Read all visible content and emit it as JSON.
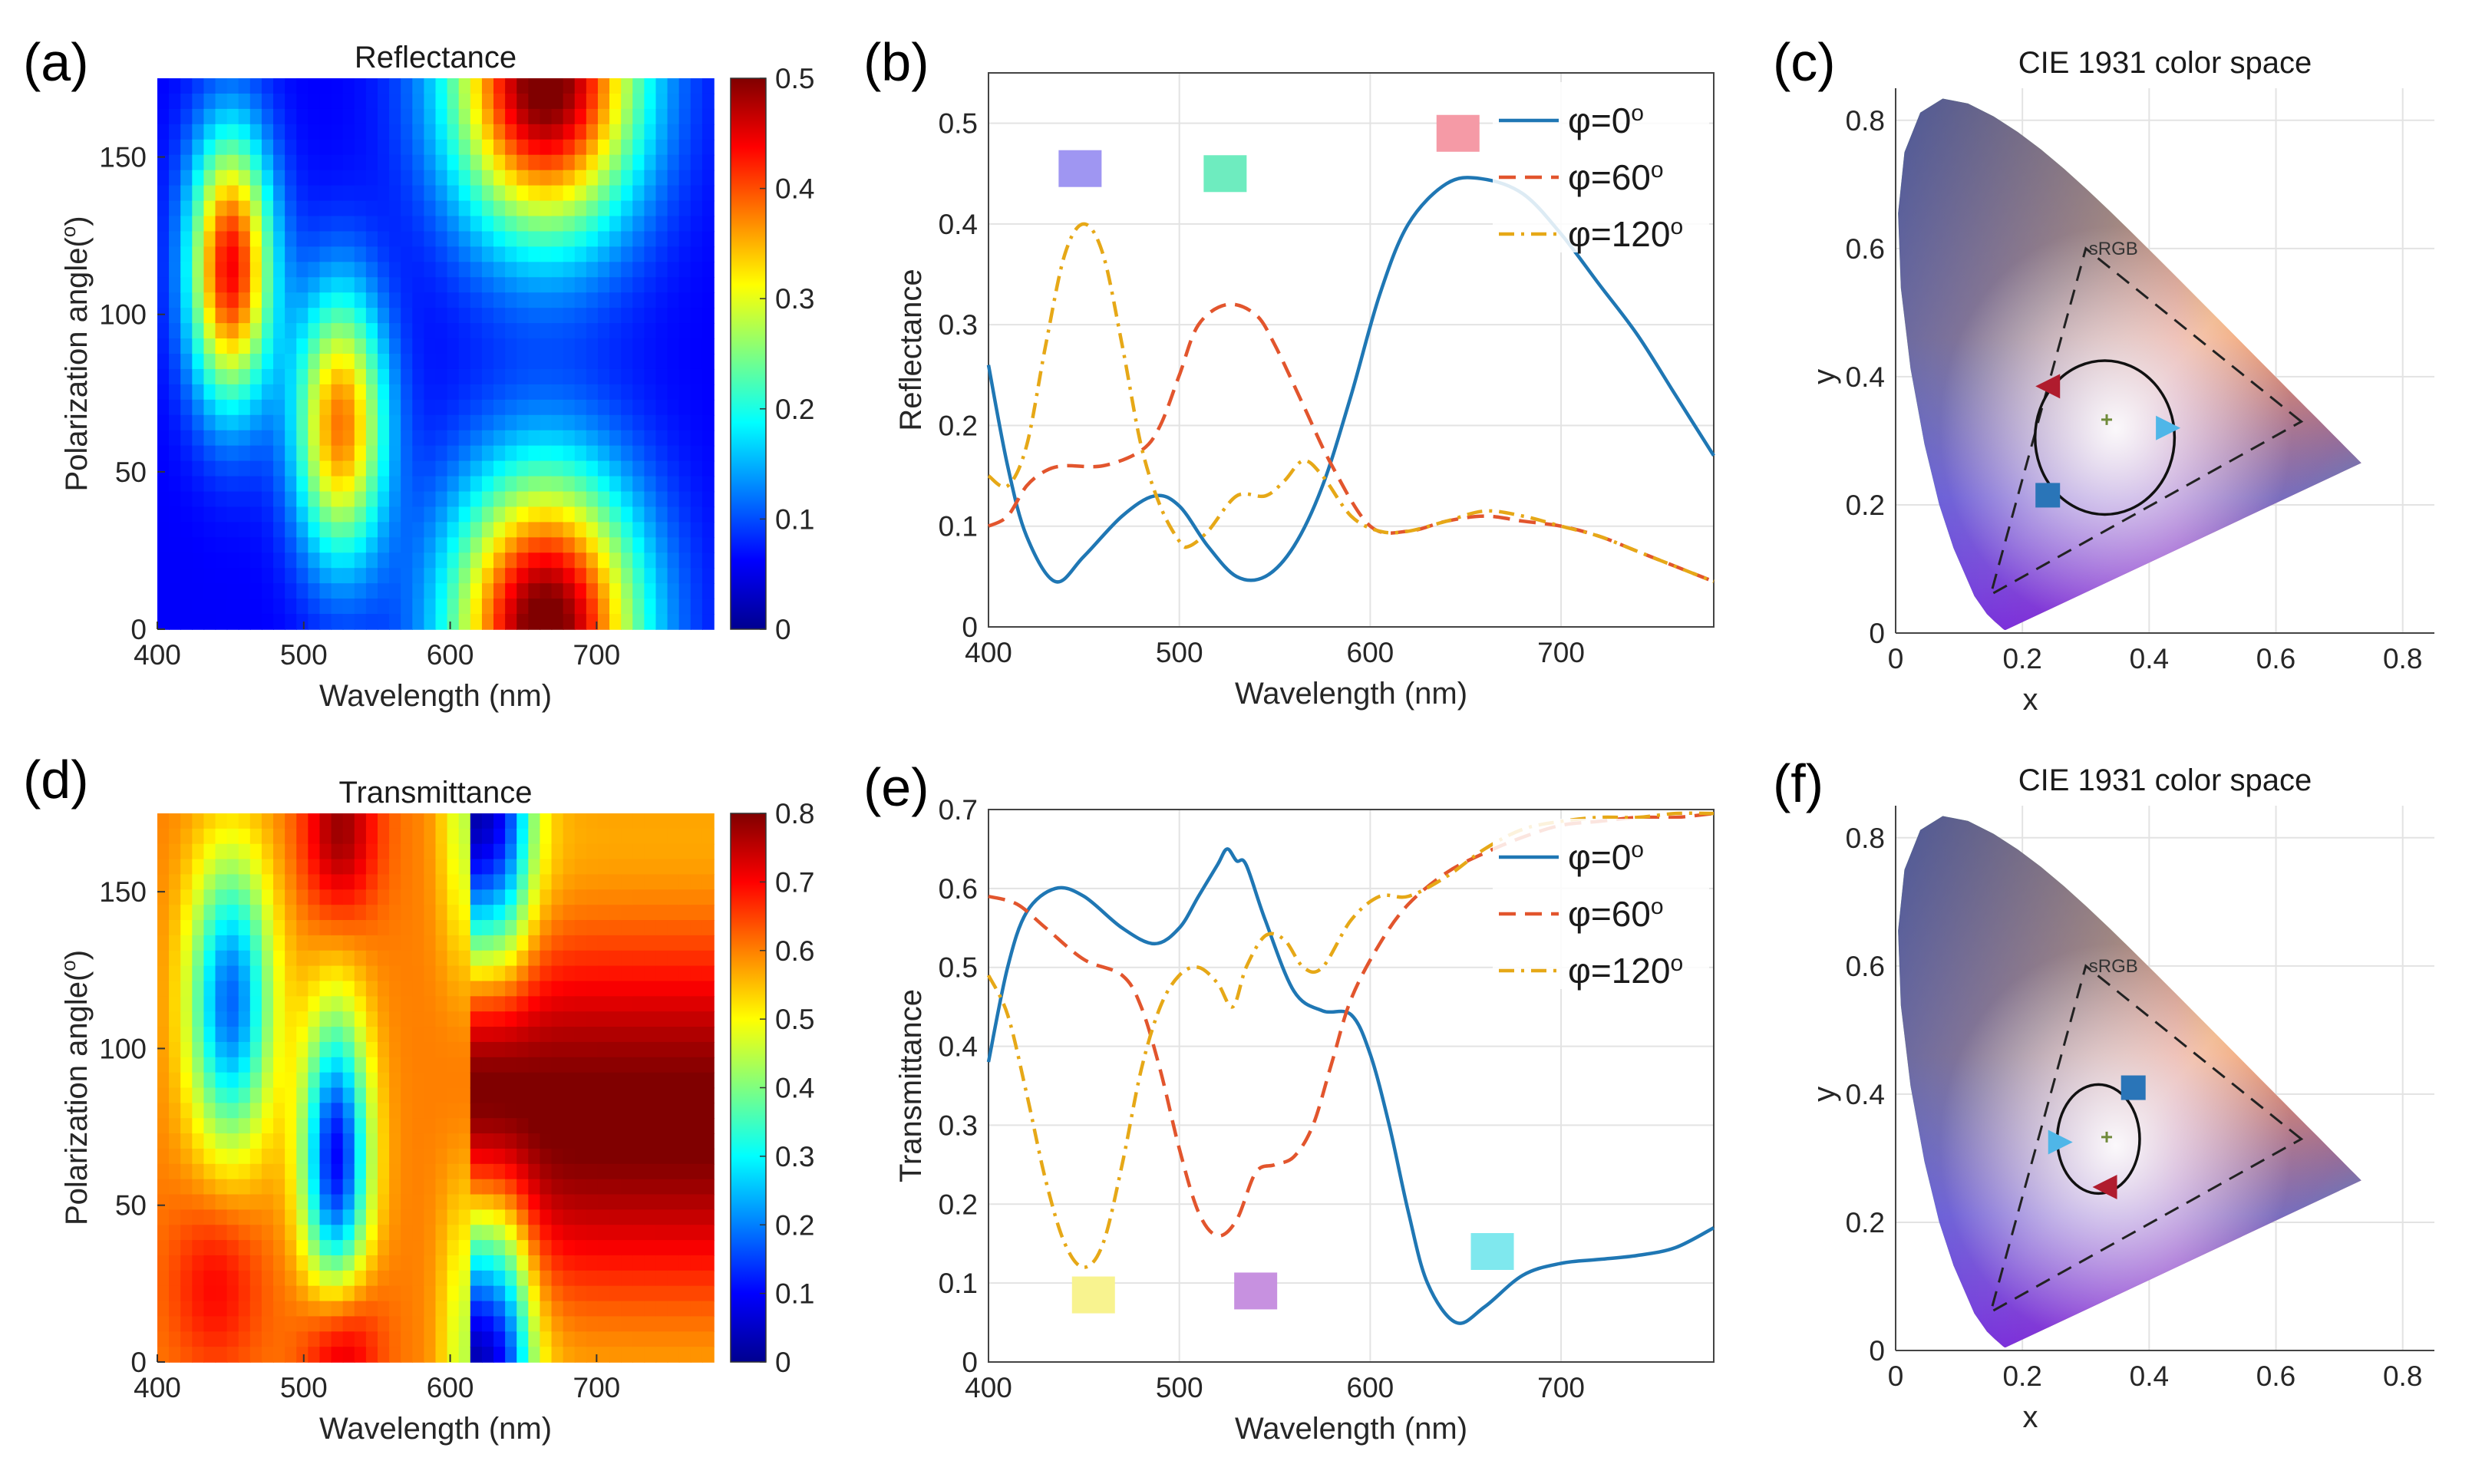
{
  "panels": {
    "a": {
      "label": "(a)",
      "title": "Reflectance"
    },
    "b": {
      "label": "(b)"
    },
    "c": {
      "label": "(c)",
      "title": "CIE 1931 color space"
    },
    "d": {
      "label": "(d)",
      "title": "Transmittance"
    },
    "e": {
      "label": "(e)"
    },
    "f": {
      "label": "(f)",
      "title": "CIE 1931 color space"
    }
  },
  "chart_data": [
    {
      "id": "a",
      "type": "heatmap",
      "title": "Reflectance",
      "xlabel": "Wavelength (nm)",
      "ylabel": "Polarization angle(o)",
      "xlim": [
        400,
        780
      ],
      "ylim": [
        0,
        175
      ],
      "xticks": [
        400,
        500,
        600,
        700
      ],
      "yticks": [
        0,
        50,
        100,
        150
      ],
      "colorbar": {
        "min": 0,
        "max": 0.5,
        "ticks": [
          "0",
          "0.1",
          "0.2",
          "0.3",
          "0.4",
          "0.5"
        ]
      },
      "blobs": [
        {
          "x": 450,
          "y": 115,
          "sx": 20,
          "sy": 30,
          "v": 0.38
        },
        {
          "x": 525,
          "y": 65,
          "sx": 22,
          "sy": 30,
          "v": 0.32
        },
        {
          "x": 665,
          "y": 175,
          "sx": 45,
          "sy": 35,
          "v": 0.46
        },
        {
          "x": 665,
          "y": 0,
          "sx": 45,
          "sy": 35,
          "v": 0.46
        }
      ],
      "base": 0.06
    },
    {
      "id": "b",
      "type": "line",
      "xlabel": "Wavelength (nm)",
      "ylabel": "Reflectance",
      "xlim": [
        400,
        780
      ],
      "ylim": [
        0,
        0.55
      ],
      "xticks": [
        400,
        500,
        600,
        700
      ],
      "yticks": [
        0,
        0.1,
        0.2,
        0.3,
        0.4,
        0.5
      ],
      "ytick_labels": [
        "0",
        "0.1",
        "0.2",
        "0.3",
        "0.4",
        "0.5"
      ],
      "series": [
        {
          "name": "φ=0°",
          "color": "#1f77b4",
          "style": "solid",
          "x": [
            400,
            410,
            420,
            435,
            450,
            470,
            487,
            500,
            515,
            530,
            545,
            560,
            575,
            590,
            605,
            620,
            640,
            658,
            680,
            700,
            720,
            740,
            760,
            780
          ],
          "y": [
            0.26,
            0.16,
            0.09,
            0.045,
            0.07,
            0.11,
            0.13,
            0.12,
            0.08,
            0.05,
            0.05,
            0.08,
            0.14,
            0.23,
            0.33,
            0.4,
            0.44,
            0.445,
            0.43,
            0.39,
            0.34,
            0.29,
            0.23,
            0.17
          ]
        },
        {
          "name": "φ=60°",
          "color": "#e2552d",
          "style": "dashed",
          "x": [
            400,
            410,
            420,
            430,
            440,
            460,
            480,
            490,
            500,
            510,
            525,
            540,
            550,
            565,
            580,
            600,
            620,
            640,
            660,
            680,
            700,
            720,
            740,
            760,
            780
          ],
          "y": [
            0.1,
            0.11,
            0.14,
            0.155,
            0.16,
            0.16,
            0.175,
            0.2,
            0.25,
            0.3,
            0.32,
            0.31,
            0.28,
            0.22,
            0.16,
            0.1,
            0.095,
            0.105,
            0.11,
            0.105,
            0.1,
            0.09,
            0.075,
            0.06,
            0.045
          ]
        },
        {
          "name": "φ=120°",
          "color": "#e6a817",
          "style": "dashdot",
          "x": [
            400,
            410,
            420,
            430,
            440,
            450,
            460,
            470,
            480,
            490,
            500,
            505,
            515,
            530,
            545,
            555,
            565,
            575,
            590,
            605,
            620,
            640,
            660,
            680,
            700,
            720,
            740,
            760,
            780
          ],
          "y": [
            0.15,
            0.14,
            0.18,
            0.28,
            0.37,
            0.4,
            0.37,
            0.28,
            0.18,
            0.12,
            0.085,
            0.08,
            0.095,
            0.13,
            0.13,
            0.145,
            0.165,
            0.15,
            0.11,
            0.095,
            0.095,
            0.105,
            0.115,
            0.11,
            0.1,
            0.09,
            0.075,
            0.06,
            0.045
          ]
        }
      ],
      "swatches": [
        {
          "x": 448,
          "y": 0.455,
          "color": "#9f96f2"
        },
        {
          "x": 524,
          "y": 0.45,
          "color": "#6eecbf"
        },
        {
          "x": 646,
          "y": 0.49,
          "color": "#f59aa6"
        }
      ],
      "legend": "top-right"
    },
    {
      "id": "c",
      "type": "scatter",
      "title": "CIE 1931 color space",
      "xlabel": "x",
      "ylabel": "y",
      "xlim": [
        0,
        0.85
      ],
      "ylim": [
        0,
        0.85
      ],
      "xticks": [
        0,
        0.2,
        0.4,
        0.6,
        0.8
      ],
      "yticks": [
        0,
        0.2,
        0.4,
        0.6,
        0.8
      ],
      "tick_labels": [
        "0",
        "0.2",
        "0.4",
        "0.6",
        "0.8"
      ],
      "gamut_label": "sRGB",
      "srgb": [
        [
          0.64,
          0.33
        ],
        [
          0.3,
          0.6
        ],
        [
          0.15,
          0.06
        ]
      ],
      "white_point": [
        0.333,
        0.333
      ],
      "ellipse": {
        "cx": 0.33,
        "cy": 0.305,
        "rx": 0.11,
        "ry": 0.12
      },
      "markers": [
        {
          "shape": "triangle-left",
          "x": 0.24,
          "y": 0.385,
          "color": "#b01c2e"
        },
        {
          "shape": "triangle-right",
          "x": 0.43,
          "y": 0.32,
          "color": "#4fb6e8"
        },
        {
          "shape": "square",
          "x": 0.24,
          "y": 0.215,
          "color": "#2a75b8"
        }
      ]
    },
    {
      "id": "d",
      "type": "heatmap",
      "title": "Transmittance",
      "xlabel": "Wavelength (nm)",
      "ylabel": "Polarization angle(o)",
      "xlim": [
        400,
        780
      ],
      "ylim": [
        0,
        175
      ],
      "xticks": [
        400,
        500,
        600,
        700
      ],
      "yticks": [
        0,
        50,
        100,
        150
      ],
      "colorbar": {
        "min": 0,
        "max": 0.8,
        "ticks": [
          "0",
          "0.1",
          "0.2",
          "0.3",
          "0.4",
          "0.5",
          "0.6",
          "0.7",
          "0.8"
        ]
      },
      "base": 0.6
    },
    {
      "id": "e",
      "type": "line",
      "xlabel": "Wavelength (nm)",
      "ylabel": "Transmittance",
      "xlim": [
        400,
        780
      ],
      "ylim": [
        0,
        0.7
      ],
      "xticks": [
        400,
        500,
        600,
        700
      ],
      "yticks": [
        0,
        0.1,
        0.2,
        0.3,
        0.4,
        0.5,
        0.6,
        0.7
      ],
      "ytick_labels": [
        "0",
        "0.1",
        "0.2",
        "0.3",
        "0.4",
        "0.5",
        "0.6",
        "0.7"
      ],
      "series": [
        {
          "name": "φ=0°",
          "color": "#1f77b4",
          "style": "solid",
          "x": [
            400,
            410,
            420,
            435,
            450,
            470,
            487,
            500,
            510,
            520,
            525,
            530,
            535,
            545,
            560,
            575,
            590,
            600,
            610,
            620,
            630,
            645,
            660,
            680,
            700,
            720,
            740,
            760,
            780
          ],
          "y": [
            0.38,
            0.5,
            0.57,
            0.6,
            0.59,
            0.55,
            0.53,
            0.55,
            0.59,
            0.63,
            0.65,
            0.635,
            0.63,
            0.56,
            0.47,
            0.445,
            0.44,
            0.39,
            0.3,
            0.19,
            0.1,
            0.05,
            0.07,
            0.11,
            0.125,
            0.13,
            0.135,
            0.145,
            0.17
          ]
        },
        {
          "name": "φ=60°",
          "color": "#e2552d",
          "style": "dashed",
          "x": [
            400,
            415,
            430,
            450,
            470,
            480,
            490,
            500,
            510,
            520,
            530,
            540,
            550,
            560,
            570,
            580,
            590,
            605,
            620,
            640,
            660,
            680,
            700,
            720,
            740,
            760,
            780
          ],
          "y": [
            0.59,
            0.58,
            0.55,
            0.51,
            0.49,
            0.45,
            0.37,
            0.27,
            0.19,
            0.16,
            0.18,
            0.24,
            0.25,
            0.26,
            0.3,
            0.38,
            0.46,
            0.53,
            0.58,
            0.62,
            0.645,
            0.665,
            0.68,
            0.685,
            0.69,
            0.69,
            0.695
          ]
        },
        {
          "name": "φ=120°",
          "color": "#e6a817",
          "style": "dashdot",
          "x": [
            400,
            410,
            420,
            430,
            440,
            450,
            460,
            470,
            480,
            490,
            500,
            510,
            520,
            528,
            535,
            545,
            555,
            565,
            575,
            590,
            605,
            620,
            640,
            660,
            680,
            700,
            720,
            740,
            760,
            780
          ],
          "y": [
            0.49,
            0.44,
            0.34,
            0.23,
            0.15,
            0.12,
            0.15,
            0.25,
            0.37,
            0.45,
            0.49,
            0.5,
            0.48,
            0.45,
            0.5,
            0.54,
            0.535,
            0.5,
            0.5,
            0.56,
            0.59,
            0.59,
            0.615,
            0.65,
            0.675,
            0.685,
            0.69,
            0.69,
            0.695,
            0.695
          ]
        }
      ],
      "swatches": [
        {
          "x": 455,
          "y": 0.085,
          "color": "#f8f38f"
        },
        {
          "x": 540,
          "y": 0.09,
          "color": "#c791e0"
        },
        {
          "x": 664,
          "y": 0.14,
          "color": "#7fe8ee"
        }
      ],
      "legend": "top-right"
    },
    {
      "id": "f",
      "type": "scatter",
      "title": "CIE 1931 color space",
      "xlabel": "x",
      "ylabel": "y",
      "xlim": [
        0,
        0.85
      ],
      "ylim": [
        0,
        0.85
      ],
      "xticks": [
        0,
        0.2,
        0.4,
        0.6,
        0.8
      ],
      "yticks": [
        0,
        0.2,
        0.4,
        0.6,
        0.8
      ],
      "tick_labels": [
        "0",
        "0.2",
        "0.4",
        "0.6",
        "0.8"
      ],
      "gamut_label": "sRGB",
      "srgb": [
        [
          0.64,
          0.33
        ],
        [
          0.3,
          0.6
        ],
        [
          0.15,
          0.06
        ]
      ],
      "white_point": [
        0.333,
        0.333
      ],
      "ellipse": {
        "cx": 0.32,
        "cy": 0.33,
        "rx": 0.065,
        "ry": 0.085
      },
      "markers": [
        {
          "shape": "square",
          "x": 0.375,
          "y": 0.41,
          "color": "#2a75b8"
        },
        {
          "shape": "triangle-right",
          "x": 0.26,
          "y": 0.325,
          "color": "#4fb6e8"
        },
        {
          "shape": "triangle-left",
          "x": 0.33,
          "y": 0.255,
          "color": "#b01c2e"
        }
      ]
    }
  ]
}
